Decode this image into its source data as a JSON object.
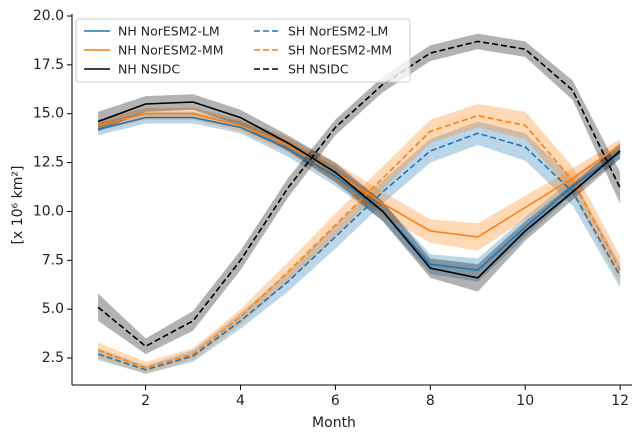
{
  "chart_data": {
    "type": "line",
    "x": [
      1,
      2,
      3,
      4,
      5,
      6,
      7,
      8,
      9,
      10,
      11,
      12
    ],
    "xlabel": "Month",
    "ylabel": "[x 10⁶ km²]",
    "xlim": [
      0.45,
      12.25
    ],
    "ylim": [
      1.12,
      20.0
    ],
    "xticks": [
      2,
      4,
      6,
      8,
      10,
      12
    ],
    "yticks": [
      2.5,
      {
        "value": 5,
        "label": "5.0"
      },
      7.5,
      {
        "value": 10,
        "label": "10.0"
      },
      12.5,
      {
        "value": 15,
        "label": "15.0"
      },
      17.5,
      {
        "value": 20,
        "label": "20.0"
      }
    ],
    "legend_loc": "upper left",
    "legend_columns": 2,
    "series": [
      {
        "name": "NH NorESM2-LM",
        "color": "#1f77b4",
        "style": "solid",
        "values": [
          14.2,
          14.8,
          14.8,
          14.3,
          13.2,
          11.8,
          10.0,
          7.3,
          7.0,
          9.2,
          11.3,
          13.0
        ],
        "spread": [
          0.3,
          0.3,
          0.3,
          0.3,
          0.4,
          0.5,
          0.5,
          0.5,
          0.6,
          0.5,
          0.4,
          0.3
        ]
      },
      {
        "name": "SH NorESM2-LM",
        "color": "#1f77b4",
        "style": "dashed",
        "values": [
          2.7,
          1.9,
          2.6,
          4.4,
          6.4,
          8.7,
          11.0,
          13.1,
          14.0,
          13.3,
          11.0,
          6.7
        ],
        "spread": [
          0.3,
          0.2,
          0.3,
          0.4,
          0.5,
          0.6,
          0.6,
          0.6,
          0.6,
          0.7,
          0.7,
          0.6
        ]
      },
      {
        "name": "NH NorESM2-MM",
        "color": "#ff7f0e",
        "style": "solid",
        "values": [
          14.4,
          15.0,
          15.0,
          14.4,
          13.4,
          12.0,
          10.4,
          9.0,
          8.7,
          10.2,
          11.7,
          13.4
        ],
        "spread": [
          0.3,
          0.3,
          0.3,
          0.3,
          0.4,
          0.5,
          0.6,
          0.6,
          0.7,
          0.6,
          0.5,
          0.3
        ]
      },
      {
        "name": "SH NorESM2-MM",
        "color": "#ff7f0e",
        "style": "dashed",
        "values": [
          2.9,
          2.0,
          2.7,
          4.6,
          6.9,
          9.3,
          11.7,
          14.1,
          14.9,
          14.4,
          11.6,
          7.0
        ],
        "spread": [
          0.4,
          0.3,
          0.3,
          0.4,
          0.5,
          0.6,
          0.6,
          0.6,
          0.6,
          0.7,
          0.7,
          0.7
        ]
      },
      {
        "name": "NH NSIDC",
        "color": "#000000",
        "style": "solid",
        "values": [
          14.6,
          15.5,
          15.6,
          14.8,
          13.5,
          12.0,
          10.0,
          7.1,
          6.6,
          9.0,
          11.0,
          13.1
        ],
        "spread": [
          0.5,
          0.4,
          0.4,
          0.4,
          0.4,
          0.5,
          0.5,
          0.5,
          0.7,
          0.5,
          0.4,
          0.4
        ]
      },
      {
        "name": "SH NSIDC",
        "color": "#000000",
        "style": "dashed",
        "values": [
          5.1,
          3.1,
          4.4,
          7.5,
          11.2,
          14.3,
          16.5,
          18.1,
          18.7,
          18.3,
          16.2,
          11.2
        ],
        "spread": [
          0.7,
          0.4,
          0.5,
          0.5,
          0.5,
          0.4,
          0.4,
          0.4,
          0.4,
          0.4,
          0.5,
          0.8
        ]
      }
    ]
  }
}
